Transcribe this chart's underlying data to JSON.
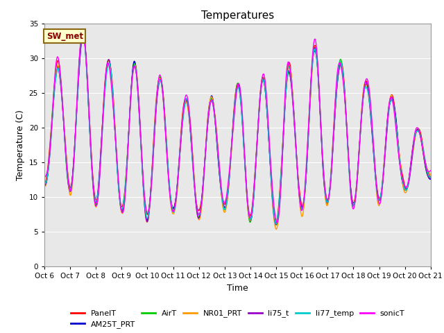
{
  "title": "Temperatures",
  "xlabel": "Time",
  "ylabel": "Temperature (C)",
  "ylim": [
    0,
    35
  ],
  "yticks": [
    0,
    5,
    10,
    15,
    20,
    25,
    30,
    35
  ],
  "x_labels": [
    "Oct 6",
    "Oct 7",
    "Oct 8",
    "Oct 9",
    "Oct 10",
    "Oct 11",
    "Oct 12",
    "Oct 13",
    "Oct 14",
    "Oct 15",
    "Oct 16",
    "Oct 17",
    "Oct 18",
    "Oct 19",
    "Oct 20",
    "Oct 21"
  ],
  "series": {
    "PanelT": {
      "color": "#ff0000",
      "lw": 1.0
    },
    "AM25T_PRT": {
      "color": "#0000cc",
      "lw": 1.0
    },
    "AirT": {
      "color": "#00cc00",
      "lw": 1.0
    },
    "NR01_PRT": {
      "color": "#ff9900",
      "lw": 1.0
    },
    "li75_t": {
      "color": "#9900cc",
      "lw": 1.0
    },
    "li77_temp": {
      "color": "#00cccc",
      "lw": 1.0
    },
    "sonicT": {
      "color": "#ff00ff",
      "lw": 1.0
    }
  },
  "annotation_text": "SW_met",
  "bg_color": "#e8e8e8",
  "grid_color": "#ffffff",
  "fig_bg": "#ffffff",
  "n_points": 1500
}
